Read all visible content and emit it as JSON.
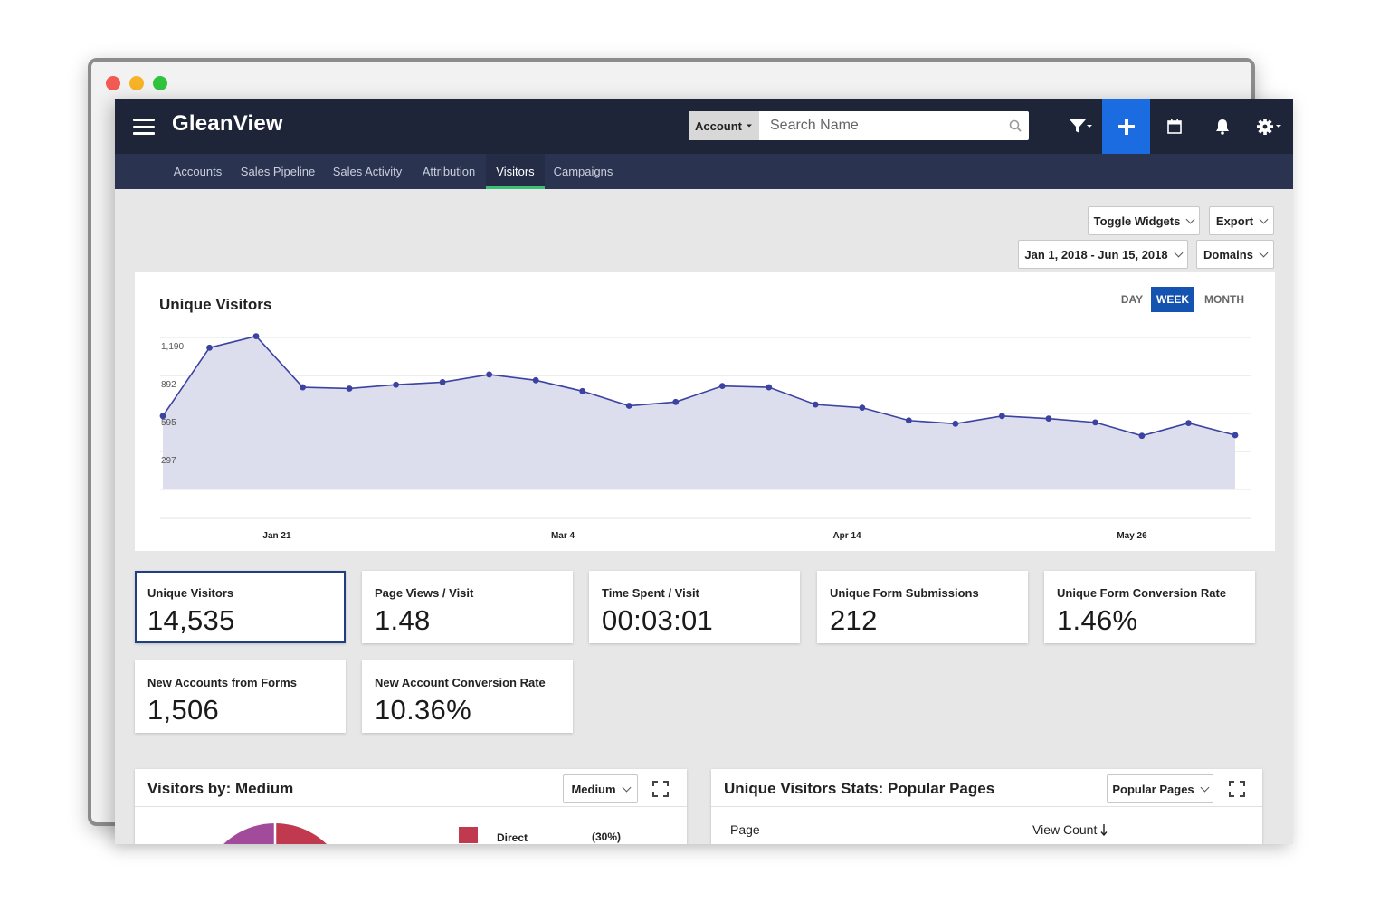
{
  "app": {
    "title": "GleanView",
    "search": {
      "scope_label": "Account",
      "placeholder": "Search Name"
    }
  },
  "toolbar_icons": [
    "filter-icon",
    "plus-icon",
    "calendar-icon",
    "bell-icon",
    "gear-icon"
  ],
  "nav": {
    "items": [
      {
        "label": "Accounts"
      },
      {
        "label": "Sales Pipeline"
      },
      {
        "label": "Sales Activity"
      },
      {
        "label": "Attribution"
      },
      {
        "label": "Visitors",
        "active": true
      },
      {
        "label": "Campaigns"
      }
    ]
  },
  "controls": {
    "toggle_widgets": "Toggle Widgets",
    "export": "Export",
    "date_range": "Jan 1, 2018 - Jun 15, 2018",
    "domains": "Domains"
  },
  "chart_card": {
    "title": "Unique Visitors",
    "ranges": [
      {
        "label": "DAY"
      },
      {
        "label": "WEEK",
        "active": true
      },
      {
        "label": "MONTH"
      }
    ]
  },
  "chart_data": {
    "type": "area",
    "title": "Unique Visitors",
    "y_ticks": [
      "1,190",
      "892",
      "595",
      "297"
    ],
    "x_ticks": [
      "Jan 21",
      "Mar 4",
      "Apr 14",
      "May 26"
    ],
    "ylim": [
      0,
      1190
    ],
    "grid": true,
    "series": [
      {
        "values": [
          575,
          1110,
          1200,
          800,
          790,
          820,
          840,
          900,
          855,
          770,
          655,
          685,
          810,
          800,
          665,
          640,
          540,
          515,
          575,
          555,
          525,
          420,
          520,
          425
        ]
      }
    ]
  },
  "stats": [
    {
      "label": "Unique Visitors",
      "value": "14,535",
      "selected": true
    },
    {
      "label": "Page Views / Visit",
      "value": "1.48"
    },
    {
      "label": "Time Spent / Visit",
      "value": "00:03:01"
    },
    {
      "label": "Unique Form Submissions",
      "value": "212"
    },
    {
      "label": "Unique Form Conversion Rate",
      "value": "1.46%"
    },
    {
      "label": "New Accounts from Forms",
      "value": "1,506"
    },
    {
      "label": "New Account Conversion Rate",
      "value": "10.36%"
    }
  ],
  "medium_panel": {
    "title": "Visitors by: Medium",
    "dropdown": "Medium",
    "legend": [
      {
        "label": "Direct",
        "pct": "(30%)",
        "color": "#c0394f"
      }
    ],
    "slice_colors": [
      "#c0394f",
      "#a24b9a"
    ]
  },
  "pages_panel": {
    "title": "Unique Visitors Stats: Popular Pages",
    "dropdown": "Popular Pages",
    "columns": [
      "Page",
      "View Count"
    ]
  }
}
